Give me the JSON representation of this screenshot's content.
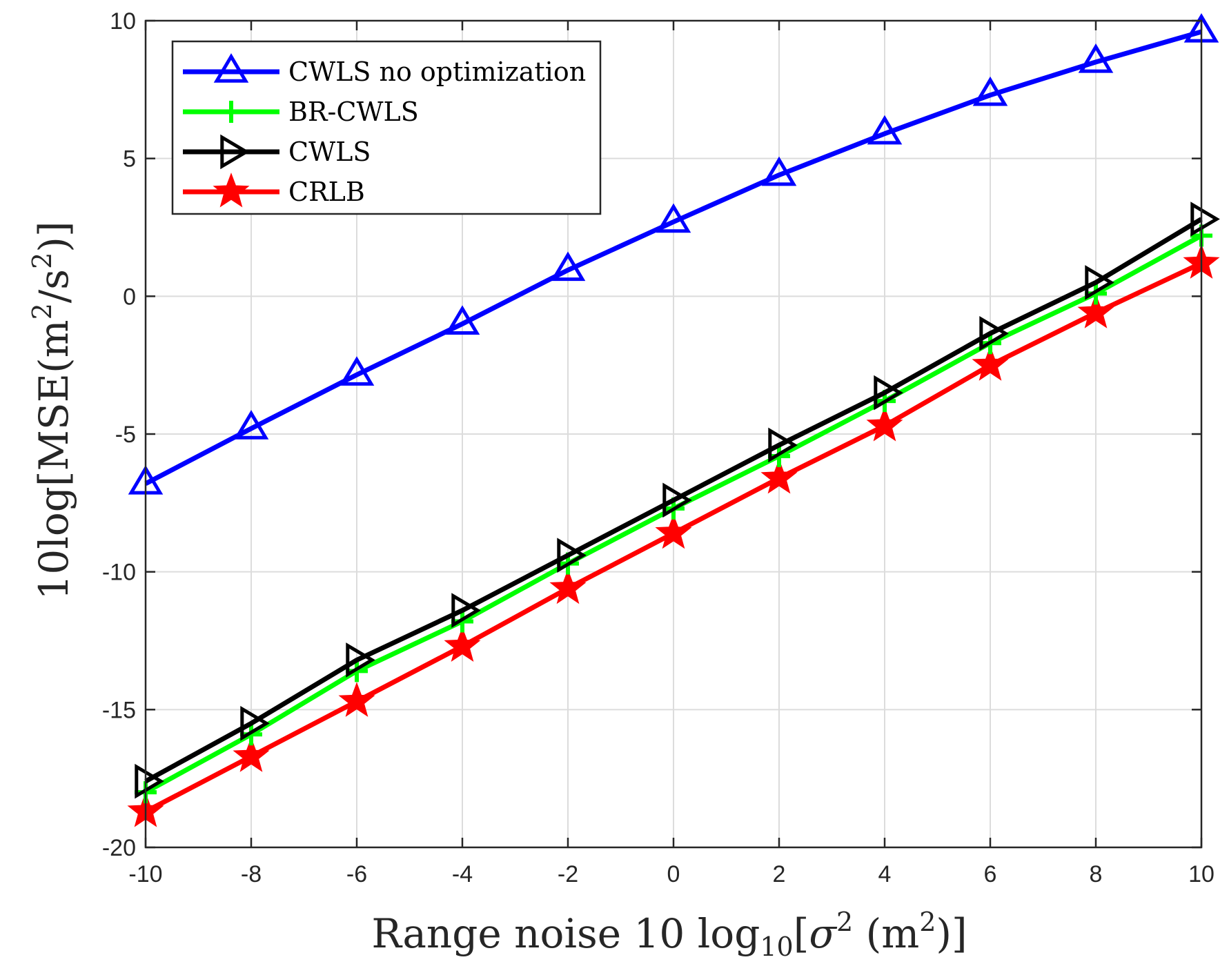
{
  "chart_data": {
    "type": "line",
    "title": "",
    "xlabel_parts": {
      "prefix": "Range noise 10 log",
      "subscript": "10",
      "bracket_open": "[",
      "sigma": "σ",
      "sigma_exp": "2",
      "unit_open": " (m",
      "unit_exp": "2",
      "unit_close": ")]"
    },
    "ylabel_parts": {
      "prefix": "10log[MSE(m",
      "exp1": "2",
      "mid": "/s",
      "exp2": "2",
      "suffix": ")]"
    },
    "x": [
      -10,
      -8,
      -6,
      -4,
      -2,
      0,
      2,
      4,
      6,
      8,
      10
    ],
    "xlim": [
      -10,
      10
    ],
    "ylim": [
      -20,
      10
    ],
    "xticks": [
      "-10",
      "-8",
      "-6",
      "-4",
      "-2",
      "0",
      "2",
      "4",
      "6",
      "8",
      "10"
    ],
    "yticks": [
      "-20",
      "-15",
      "-10",
      "-5",
      "0",
      "5",
      "10"
    ],
    "xtick_values": [
      -10,
      -8,
      -6,
      -4,
      -2,
      0,
      2,
      4,
      6,
      8,
      10
    ],
    "ytick_values": [
      -20,
      -15,
      -10,
      -5,
      0,
      5,
      10
    ],
    "grid": true,
    "legend_position": "top-left",
    "series": [
      {
        "name": "CWLS no optimization",
        "color": "#0000ff",
        "marker": "triangle-up",
        "values": [
          -6.8,
          -4.8,
          -2.85,
          -1.0,
          0.95,
          2.7,
          4.4,
          5.9,
          7.3,
          8.5,
          9.6
        ]
      },
      {
        "name": "BR-CWLS",
        "color": "#00ff00",
        "marker": "plus",
        "values": [
          -18.0,
          -15.9,
          -13.6,
          -11.8,
          -9.7,
          -7.7,
          -5.8,
          -3.8,
          -1.7,
          0.1,
          2.2
        ]
      },
      {
        "name": "CWLS",
        "color": "#000000",
        "marker": "triangle-right",
        "values": [
          -17.6,
          -15.5,
          -13.2,
          -11.4,
          -9.4,
          -7.4,
          -5.4,
          -3.5,
          -1.35,
          0.5,
          2.8
        ]
      },
      {
        "name": "CRLB",
        "color": "#ff0000",
        "marker": "star",
        "values": [
          -18.7,
          -16.7,
          -14.7,
          -12.7,
          -10.6,
          -8.6,
          -6.6,
          -4.7,
          -2.5,
          -0.6,
          1.2
        ]
      }
    ]
  }
}
